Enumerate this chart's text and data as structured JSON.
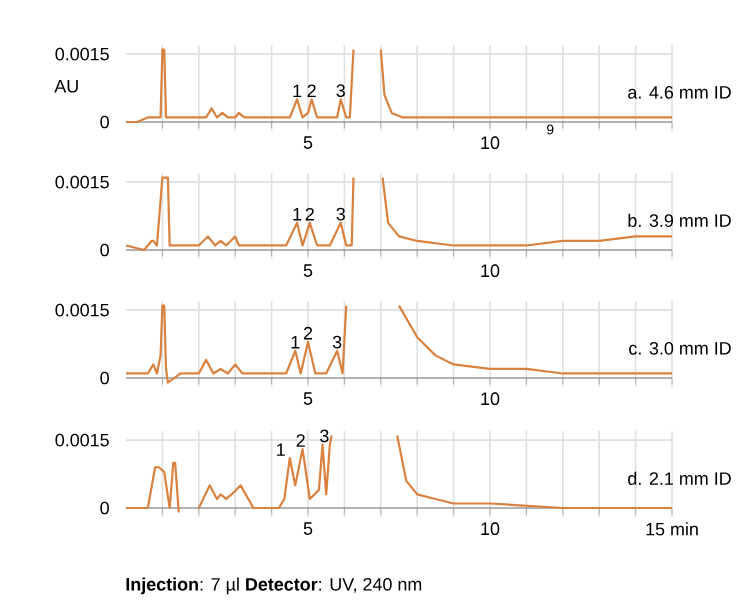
{
  "chart_data": [
    {
      "type": "line",
      "ylabel": "AU",
      "xlim": [
        0,
        15
      ],
      "ylim": [
        -0.0002,
        0.0017
      ],
      "grid": true,
      "xticks": [
        {
          "value": 1,
          "label": null
        },
        {
          "value": 2,
          "label": null
        },
        {
          "value": 3,
          "label": null
        },
        {
          "value": 4,
          "label": null
        },
        5,
        {
          "value": 6,
          "label": null
        },
        {
          "value": 7,
          "label": null
        },
        {
          "value": 8,
          "label": null
        },
        {
          "value": 9,
          "label": null
        },
        10,
        {
          "value": 11,
          "label": null
        },
        {
          "value": 12,
          "label": null
        },
        {
          "value": 13,
          "label": null
        },
        {
          "value": 14,
          "label": null
        },
        {
          "value": 15,
          "label": null
        }
      ],
      "yticks": [
        0,
        0.0015
      ],
      "series": [
        {
          "color": "#d9823f",
          "x": [
            0,
            0.3,
            0.6,
            0.8,
            0.95,
            1.0,
            1.05,
            1.1,
            1.2,
            1.5,
            2.0,
            2.2,
            2.35,
            2.5,
            2.65,
            2.8,
            3.0,
            3.1,
            3.25,
            3.5,
            4.0,
            4.5,
            4.7,
            4.85,
            5.0,
            5.1,
            5.25,
            5.5,
            5.8,
            5.9,
            6.05,
            6.15,
            6.25,
            6.6,
            7.0,
            7.1,
            7.3,
            7.6,
            8,
            10,
            12,
            14,
            15
          ],
          "values": [
            0,
            0,
            0.0001,
            0.0001,
            0.0001,
            0.0016,
            0.0016,
            0.0001,
            0.0001,
            0.0001,
            0.0001,
            0.0001,
            0.0003,
            0.0001,
            0.0002,
            0.0001,
            0.0001,
            0.0002,
            0.0001,
            0.0001,
            0.0001,
            0.0001,
            0.0005,
            0.0001,
            0.0002,
            0.0005,
            0.0001,
            0.0001,
            0.0001,
            0.0005,
            0.0001,
            0.0001,
            0.0016,
            null,
            0.0016,
            0.0006,
            0.0002,
            0.0001,
            0.0001,
            0.0001,
            0.0001,
            0.0001,
            0.0001
          ]
        }
      ],
      "annotations": [
        "a. 4.6 mm ID",
        {
          "text": "1",
          "x": 4.7,
          "y": 0.0005
        },
        {
          "text": "2",
          "x": 5.1,
          "y": 0.0005
        },
        {
          "text": "3",
          "x": 5.9,
          "y": 0.0005
        },
        "9"
      ]
    },
    {
      "type": "line",
      "xlim": [
        0,
        15
      ],
      "ylim": [
        -0.0002,
        0.0017
      ],
      "grid": true,
      "xticks": [
        {
          "value": 1,
          "label": null
        },
        {
          "value": 2,
          "label": null
        },
        {
          "value": 3,
          "label": null
        },
        {
          "value": 4,
          "label": null
        },
        5,
        {
          "value": 6,
          "label": null
        },
        {
          "value": 7,
          "label": null
        },
        {
          "value": 8,
          "label": null
        },
        {
          "value": 9,
          "label": null
        },
        10,
        {
          "value": 11,
          "label": null
        },
        {
          "value": 12,
          "label": null
        },
        {
          "value": 13,
          "label": null
        },
        {
          "value": 14,
          "label": null
        },
        {
          "value": 15,
          "label": null
        }
      ],
      "yticks": [
        0,
        0.0015
      ],
      "series": [
        {
          "color": "#d9823f",
          "x": [
            0,
            0.5,
            0.7,
            0.75,
            0.85,
            1.0,
            1.05,
            1.15,
            1.2,
            1.4,
            1.6,
            2.0,
            2.25,
            2.45,
            2.6,
            2.75,
            3.0,
            3.1,
            3.3,
            3.7,
            4.4,
            4.7,
            4.85,
            5.05,
            5.25,
            5.6,
            5.9,
            6.05,
            6.2,
            6.25,
            6.6,
            7.05,
            7.2,
            7.5,
            8,
            9,
            10,
            11,
            12,
            13,
            14,
            15
          ],
          "values": [
            0.0001,
            0,
            0.0002,
            0.0002,
            0.0001,
            0.0016,
            0.0016,
            0.0016,
            0.0001,
            0.0001,
            0.0001,
            0.0001,
            0.0003,
            0.0001,
            0.0002,
            0.0001,
            0.0003,
            0.0001,
            0.0001,
            0.0001,
            0.0001,
            0.0006,
            0.0001,
            0.0006,
            0.0001,
            0.0001,
            0.0006,
            0.0001,
            0.0001,
            0.0016,
            null,
            0.0016,
            0.0006,
            0.0003,
            0.0002,
            0.0001,
            0.0001,
            0.0001,
            0.0002,
            0.0002,
            0.0003,
            0.0003
          ]
        }
      ],
      "annotations": [
        "b. 3.9 mm ID",
        {
          "text": "1",
          "x": 4.7,
          "y": 0.0006
        },
        {
          "text": "2",
          "x": 5.05,
          "y": 0.0006
        },
        {
          "text": "3",
          "x": 5.9,
          "y": 0.0006
        }
      ]
    },
    {
      "type": "line",
      "xlim": [
        0,
        15
      ],
      "ylim": [
        -0.0002,
        0.0017
      ],
      "grid": true,
      "xticks": [
        {
          "value": 1,
          "label": null
        },
        {
          "value": 2,
          "label": null
        },
        {
          "value": 3,
          "label": null
        },
        {
          "value": 4,
          "label": null
        },
        5,
        {
          "value": 6,
          "label": null
        },
        {
          "value": 7,
          "label": null
        },
        {
          "value": 8,
          "label": null
        },
        {
          "value": 9,
          "label": null
        },
        10,
        {
          "value": 11,
          "label": null
        },
        {
          "value": 12,
          "label": null
        },
        {
          "value": 13,
          "label": null
        },
        {
          "value": 14,
          "label": null
        },
        {
          "value": 15,
          "label": null
        }
      ],
      "yticks": [
        0,
        0.0015
      ],
      "series": [
        {
          "color": "#d9823f",
          "x": [
            0,
            0.4,
            0.6,
            0.75,
            0.85,
            0.95,
            1.0,
            1.05,
            1.1,
            1.15,
            1.5,
            2.0,
            2.2,
            2.4,
            2.6,
            2.8,
            3.0,
            3.2,
            4.0,
            4.4,
            4.65,
            4.8,
            5.0,
            5.2,
            5.5,
            5.8,
            5.95,
            6.05,
            6.5,
            7.5,
            8,
            8.5,
            9,
            10,
            11,
            12,
            13,
            15
          ],
          "values": [
            0.0001,
            0.0001,
            0.0001,
            0.0003,
            0.0001,
            0.0005,
            0.0016,
            0.0016,
            0.0002,
            -0.0001,
            0.0001,
            0.0001,
            0.0004,
            0.0001,
            0.0002,
            0.0001,
            0.0003,
            0.0001,
            0.0001,
            0.0001,
            0.0006,
            0.0001,
            0.0008,
            0.0001,
            0.0001,
            0.0006,
            0.0001,
            0.0016,
            null,
            0.0016,
            0.0009,
            0.0005,
            0.0003,
            0.0002,
            0.0002,
            0.0001,
            0.0001,
            0.0001
          ]
        }
      ],
      "annotations": [
        "c. 3.0 mm ID",
        {
          "text": "1",
          "x": 4.65,
          "y": 0.0006
        },
        {
          "text": "2",
          "x": 5.0,
          "y": 0.0008
        },
        {
          "text": "3",
          "x": 5.8,
          "y": 0.0006
        }
      ]
    },
    {
      "type": "line",
      "xlim": [
        0,
        15
      ],
      "ylim": [
        -0.0002,
        0.0017
      ],
      "grid": true,
      "xticks": [
        {
          "value": 1,
          "label": null
        },
        {
          "value": 2,
          "label": null
        },
        {
          "value": 3,
          "label": null
        },
        {
          "value": 4,
          "label": null
        },
        5,
        {
          "value": 6,
          "label": null
        },
        {
          "value": 7,
          "label": null
        },
        {
          "value": 8,
          "label": null
        },
        {
          "value": 9,
          "label": null
        },
        10,
        {
          "value": 11,
          "label": null
        },
        {
          "value": 12,
          "label": null
        },
        {
          "value": 13,
          "label": null
        },
        {
          "value": 14,
          "label": null
        },
        {
          "value": 15,
          "label": "15 min"
        }
      ],
      "yticks": [
        0,
        0.0015
      ],
      "series": [
        {
          "color": "#d9823f",
          "x": [
            0,
            0.3,
            0.6,
            0.8,
            0.9,
            1.05,
            1.2,
            1.3,
            1.35,
            1.45,
            1.7,
            2.0,
            2.3,
            2.5,
            2.6,
            2.75,
            2.9,
            3.15,
            3.5,
            4.2,
            4.35,
            4.5,
            4.65,
            4.85,
            5.05,
            5.3,
            5.4,
            5.5,
            5.6,
            5.65,
            6.5,
            7.45,
            7.7,
            8,
            8.5,
            9,
            10,
            12,
            15
          ],
          "values": [
            0,
            0,
            0,
            0.0009,
            0.0009,
            0.0008,
            0,
            0.001,
            0.001,
            -0.0001,
            null,
            0,
            0.0005,
            0.0002,
            0.0003,
            0.0002,
            0.0003,
            0.0005,
            0,
            0,
            0.0002,
            0.0011,
            0.0005,
            0.0013,
            0.0002,
            0.0004,
            0.0014,
            0.0003,
            0.0014,
            0.0016,
            null,
            0.0016,
            0.0006,
            0.0003,
            0.0002,
            0.0001,
            0.0001,
            0,
            0
          ]
        }
      ],
      "annotations": [
        "d. 2.1 mm ID",
        "**Injection**: 7 µl  **Detector**: UV, 240 nm",
        {
          "text": "1",
          "x": 4.25,
          "y": 0.0011
        },
        {
          "text": "2",
          "x": 4.8,
          "y": 0.0013
        },
        {
          "text": "3",
          "x": 5.45,
          "y": 0.0014
        }
      ]
    }
  ]
}
